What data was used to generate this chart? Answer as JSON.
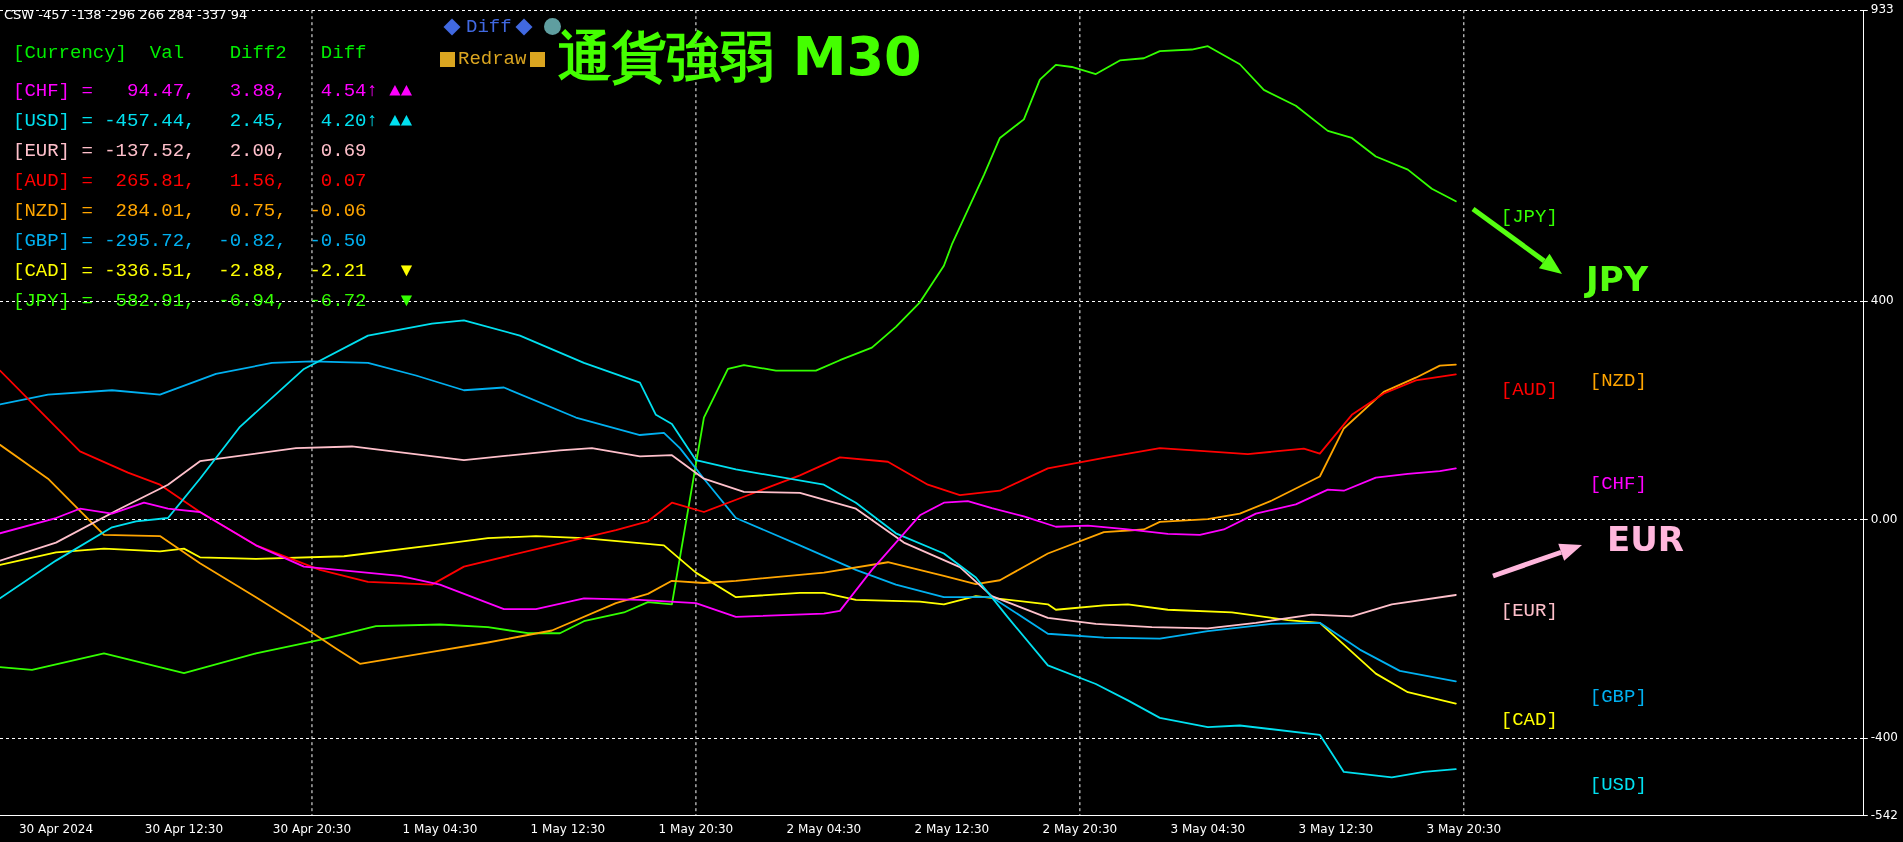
{
  "chart_data": {
    "type": "line",
    "title": "通貨強弱 M30",
    "annotations": [
      "CSW -457 -138 -296 266 284 -337 94",
      "[Currency]  Val    Diff2   Diff",
      "[CHF] =   94.47,   3.88,   4.54↑ ▲▲",
      "[USD] = -457.44,   2.45,   4.20↑ ▲▲",
      "[EUR] = -137.52,   2.00,   0.69",
      "[AUD] =  265.81,   1.56,   0.07",
      "[NZD] =  284.01,   0.75,  -0.06",
      "[GBP] = -295.72,  -0.82,  -0.50",
      "[CAD] = -336.51,  -2.88,  -2.21   ▼",
      "[JPY] =  582.91,  -6.94,  -6.72   ▼",
      "Diff",
      "Redraw",
      "JPY",
      "EUR"
    ],
    "xlim": [
      "2024-04-30T01:00",
      "2024-05-04T21:30"
    ],
    "xticks": [
      {
        "value": "2024-04-30T04:30",
        "label": "30 Apr 2024"
      },
      {
        "value": "2024-04-30T12:30",
        "label": "30 Apr 12:30"
      },
      {
        "value": "2024-04-30T20:30",
        "label": "30 Apr 20:30"
      },
      {
        "value": "2024-05-01T04:30",
        "label": "1 May 04:30"
      },
      {
        "value": "2024-05-01T12:30",
        "label": "1 May 12:30"
      },
      {
        "value": "2024-05-01T20:30",
        "label": "1 May 20:30"
      },
      {
        "value": "2024-05-02T04:30",
        "label": "2 May 04:30"
      },
      {
        "value": "2024-05-02T12:30",
        "label": "2 May 12:30"
      },
      {
        "value": "2024-05-02T20:30",
        "label": "2 May 20:30"
      },
      {
        "value": "2024-05-03T04:30",
        "label": "3 May 04:30"
      },
      {
        "value": "2024-05-03T12:30",
        "label": "3 May 12:30"
      },
      {
        "value": "2024-05-03T20:30",
        "label": "3 May 20:30"
      }
    ],
    "ylim": [
      -542,
      933
    ],
    "yticks": [
      933,
      400,
      {
        "value": 0,
        "label": "0.00"
      },
      -400,
      -542
    ],
    "grid": "y",
    "legend": false,
    "marker": "none",
    "line_style": "solid",
    "ref_lines": [
      {
        "axis": "x",
        "value": "2024-04-30T20:30",
        "color": "#ffffff",
        "line_style": "dotted"
      },
      {
        "axis": "x",
        "value": "2024-05-01T20:30",
        "color": "#ffffff",
        "line_style": "dotted"
      },
      {
        "axis": "x",
        "value": "2024-05-02T20:30",
        "color": "#ffffff",
        "line_style": "dotted"
      },
      {
        "axis": "x",
        "value": "2024-05-03T20:30",
        "color": "#ffffff",
        "line_style": "dotted"
      }
    ],
    "series": [
      {
        "name": "[CHF]",
        "color": "#ff00ff",
        "x": [
          "2024-04-30T01:00",
          "2024-04-30T04:30",
          "2024-04-30T06:00",
          "2024-04-30T08:00",
          "2024-04-30T10:00",
          "2024-04-30T11:30",
          "2024-04-30T13:30",
          "2024-04-30T17:00",
          "2024-04-30T20:00",
          "2024-05-01T02:00",
          "2024-05-01T04:30",
          "2024-05-01T08:30",
          "2024-05-01T10:30",
          "2024-05-01T13:30",
          "2024-05-01T17:00",
          "2024-05-01T20:30",
          "2024-05-01T23:00",
          "2024-05-02T04:30",
          "2024-05-02T05:30",
          "2024-05-02T07:30",
          "2024-05-02T10:30",
          "2024-05-02T12:00",
          "2024-05-02T13:30",
          "2024-05-02T15:00",
          "2024-05-02T17:00",
          "2024-05-02T19:00",
          "2024-05-02T21:00",
          "2024-05-02T23:30",
          "2024-05-03T02:00",
          "2024-05-03T04:00",
          "2024-05-03T05:30",
          "2024-05-03T07:30",
          "2024-05-03T10:00",
          "2024-05-03T12:00",
          "2024-05-03T13:00",
          "2024-05-03T15:00",
          "2024-05-03T17:00",
          "2024-05-03T19:00",
          "2024-05-03T20:00"
        ],
        "values": [
          -25,
          3,
          20,
          11,
          31,
          20,
          14,
          -47,
          -86,
          -103,
          -119,
          -164,
          -164,
          -144,
          -147,
          -153,
          -178,
          -172,
          -167,
          -92,
          8,
          31,
          34,
          21,
          6,
          -13,
          -11,
          -18,
          -26,
          -28,
          -18,
          11,
          28,
          55,
          53,
          77,
          84,
          89,
          94
        ]
      },
      {
        "name": "[USD]",
        "color": "#00e0f0",
        "x": [
          "2024-04-30T01:00",
          "2024-04-30T04:30",
          "2024-04-30T08:00",
          "2024-04-30T09:30",
          "2024-04-30T11:30",
          "2024-04-30T13:30",
          "2024-04-30T16:00",
          "2024-04-30T20:00",
          "2024-05-01T00:00",
          "2024-05-01T04:00",
          "2024-05-01T06:00",
          "2024-05-01T09:30",
          "2024-05-01T13:30",
          "2024-05-01T17:00",
          "2024-05-01T18:00",
          "2024-05-01T19:00",
          "2024-05-01T20:30",
          "2024-05-01T23:00",
          "2024-05-02T04:30",
          "2024-05-02T06:30",
          "2024-05-02T09:00",
          "2024-05-02T12:00",
          "2024-05-02T14:00",
          "2024-05-02T16:00",
          "2024-05-02T18:30",
          "2024-05-02T21:30",
          "2024-05-02T23:30",
          "2024-05-03T01:30",
          "2024-05-03T04:30",
          "2024-05-03T06:30",
          "2024-05-03T11:30",
          "2024-05-03T13:00",
          "2024-05-03T16:00",
          "2024-05-03T18:00",
          "2024-05-03T20:00"
        ],
        "values": [
          -144,
          -75,
          -14,
          -3,
          3,
          75,
          170,
          276,
          337,
          359,
          365,
          337,
          287,
          251,
          192,
          175,
          109,
          92,
          64,
          31,
          -25,
          -62,
          -106,
          -179,
          -267,
          -301,
          -331,
          -363,
          -380,
          -377,
          -394,
          -462,
          -472,
          -462,
          -457
        ]
      },
      {
        "name": "[EUR]",
        "color": "#ffc0cb",
        "x": [
          "2024-04-30T01:00",
          "2024-04-30T04:30",
          "2024-04-30T08:30",
          "2024-04-30T11:30",
          "2024-04-30T13:30",
          "2024-04-30T19:30",
          "2024-04-30T23:00",
          "2024-05-01T06:00",
          "2024-05-01T12:00",
          "2024-05-01T14:00",
          "2024-05-01T17:00",
          "2024-05-01T19:00",
          "2024-05-01T21:00",
          "2024-05-01T23:30",
          "2024-05-02T03:00",
          "2024-05-02T06:30",
          "2024-05-02T09:30",
          "2024-05-02T13:00",
          "2024-05-02T15:00",
          "2024-05-02T18:30",
          "2024-05-02T21:30",
          "2024-05-03T01:00",
          "2024-05-03T04:30",
          "2024-05-03T07:30",
          "2024-05-03T11:00",
          "2024-05-03T13:30",
          "2024-05-03T16:00",
          "2024-05-03T20:00"
        ],
        "values": [
          -75,
          -42,
          20,
          64,
          107,
          131,
          134,
          109,
          127,
          131,
          116,
          118,
          75,
          51,
          49,
          20,
          -42,
          -87,
          -140,
          -180,
          -191,
          -197,
          -199,
          -189,
          -174,
          -177,
          -155,
          -138
        ]
      },
      {
        "name": "[AUD]",
        "color": "#ff0000",
        "x": [
          "2024-04-30T01:00",
          "2024-04-30T06:00",
          "2024-04-30T09:00",
          "2024-04-30T11:00",
          "2024-04-30T13:30",
          "2024-04-30T17:00",
          "2024-04-30T21:00",
          "2024-05-01T00:00",
          "2024-05-01T04:00",
          "2024-05-01T06:00",
          "2024-05-01T11:30",
          "2024-05-01T15:30",
          "2024-05-01T17:30",
          "2024-05-01T19:00",
          "2024-05-01T21:00",
          "2024-05-01T23:30",
          "2024-05-02T03:00",
          "2024-05-02T05:30",
          "2024-05-02T08:30",
          "2024-05-02T11:00",
          "2024-05-02T13:00",
          "2024-05-02T15:30",
          "2024-05-02T18:30",
          "2024-05-02T22:00",
          "2024-05-03T01:30",
          "2024-05-03T04:30",
          "2024-05-03T07:00",
          "2024-05-03T10:30",
          "2024-05-03T11:30",
          "2024-05-03T13:30",
          "2024-05-03T15:30",
          "2024-05-03T17:30",
          "2024-05-03T20:00"
        ],
        "values": [
          273,
          125,
          86,
          64,
          14,
          -47,
          -92,
          -114,
          -119,
          -86,
          -47,
          -19,
          -3,
          31,
          14,
          42,
          81,
          114,
          106,
          64,
          45,
          53,
          94,
          113,
          131,
          125,
          120,
          130,
          121,
          192,
          231,
          255,
          266
        ]
      },
      {
        "name": "[NZD]",
        "color": "#ffa500",
        "x": [
          "2024-04-30T01:00",
          "2024-04-30T04:00",
          "2024-04-30T07:30",
          "2024-04-30T11:00",
          "2024-04-30T13:30",
          "2024-04-30T17:00",
          "2024-04-30T20:00",
          "2024-04-30T22:00",
          "2024-04-30T23:30",
          "2024-05-01T04:00",
          "2024-05-01T07:30",
          "2024-05-01T11:30",
          "2024-05-01T15:30",
          "2024-05-01T17:30",
          "2024-05-01T19:00",
          "2024-05-01T21:00",
          "2024-05-01T23:00",
          "2024-05-02T04:30",
          "2024-05-02T08:30",
          "2024-05-02T12:00",
          "2024-05-02T14:00",
          "2024-05-02T15:30",
          "2024-05-02T18:30",
          "2024-05-02T22:00",
          "2024-05-03T00:30",
          "2024-05-03T01:30",
          "2024-05-03T04:30",
          "2024-05-03T06:30",
          "2024-05-03T08:30",
          "2024-05-03T11:30",
          "2024-05-03T13:00",
          "2024-05-03T15:30",
          "2024-05-03T17:30",
          "2024-05-03T19:00",
          "2024-05-03T20:00"
        ],
        "values": [
          137,
          75,
          -28,
          -30,
          -80,
          -142,
          -197,
          -236,
          -264,
          -242,
          -225,
          -203,
          -153,
          -136,
          -112,
          -116,
          -112,
          -97,
          -78,
          -103,
          -118,
          -111,
          -62,
          -23,
          -18,
          -4,
          1,
          11,
          35,
          79,
          167,
          234,
          260,
          282,
          284
        ]
      },
      {
        "name": "[GBP]",
        "color": "#00b0f0",
        "x": [
          "2024-04-30T01:00",
          "2024-04-30T04:00",
          "2024-04-30T08:00",
          "2024-04-30T11:00",
          "2024-04-30T14:30",
          "2024-04-30T18:00",
          "2024-04-30T20:30",
          "2024-05-01T00:00",
          "2024-05-01T03:00",
          "2024-05-01T06:00",
          "2024-05-01T08:30",
          "2024-05-01T13:00",
          "2024-05-01T17:00",
          "2024-05-01T18:30",
          "2024-05-01T19:30",
          "2024-05-01T21:00",
          "2024-05-01T23:00",
          "2024-05-02T03:00",
          "2024-05-02T06:30",
          "2024-05-02T09:00",
          "2024-05-02T12:00",
          "2024-05-02T15:00",
          "2024-05-02T18:30",
          "2024-05-02T22:00",
          "2024-05-03T01:30",
          "2024-05-03T04:30",
          "2024-05-03T08:30",
          "2024-05-03T11:30",
          "2024-05-03T14:00",
          "2024-05-03T16:30",
          "2024-05-03T20:00"
        ],
        "values": [
          211,
          229,
          237,
          229,
          267,
          287,
          290,
          287,
          264,
          237,
          242,
          187,
          155,
          159,
          131,
          75,
          3,
          -47,
          -92,
          -119,
          -142,
          -142,
          -209,
          -216,
          -218,
          -204,
          -191,
          -189,
          -238,
          -277,
          -296
        ]
      },
      {
        "name": "[CAD]",
        "color": "#ffff00",
        "x": [
          "2024-04-30T01:00",
          "2024-04-30T04:30",
          "2024-04-30T07:30",
          "2024-04-30T11:00",
          "2024-04-30T12:30",
          "2024-04-30T13:30",
          "2024-04-30T17:00",
          "2024-04-30T22:30",
          "2024-05-01T04:00",
          "2024-05-01T07:30",
          "2024-05-01T10:30",
          "2024-05-01T13:30",
          "2024-05-01T18:30",
          "2024-05-01T20:30",
          "2024-05-01T23:00",
          "2024-05-02T03:00",
          "2024-05-02T04:30",
          "2024-05-02T06:30",
          "2024-05-02T10:30",
          "2024-05-02T12:00",
          "2024-05-02T14:00",
          "2024-05-02T18:30",
          "2024-05-02T19:00",
          "2024-05-02T22:00",
          "2024-05-02T23:30",
          "2024-05-03T02:00",
          "2024-05-03T06:00",
          "2024-05-03T09:30",
          "2024-05-03T11:30",
          "2024-05-03T15:00",
          "2024-05-03T17:00",
          "2024-05-03T20:00"
        ],
        "values": [
          -83,
          -60,
          -53,
          -58,
          -53,
          -69,
          -72,
          -67,
          -47,
          -34,
          -30,
          -34,
          -47,
          -97,
          -142,
          -134,
          -134,
          -147,
          -150,
          -155,
          -140,
          -155,
          -165,
          -157,
          -155,
          -165,
          -170,
          -184,
          -189,
          -282,
          -316,
          -337
        ]
      },
      {
        "name": "[JPY]",
        "color": "#33ff00",
        "x": [
          "2024-04-30T01:00",
          "2024-04-30T03:00",
          "2024-04-30T07:30",
          "2024-04-30T12:30",
          "2024-04-30T17:00",
          "2024-04-30T21:00",
          "2024-05-01T00:30",
          "2024-05-01T04:30",
          "2024-05-01T07:30",
          "2024-05-01T10:00",
          "2024-05-01T12:00",
          "2024-05-01T13:30",
          "2024-05-01T16:00",
          "2024-05-01T17:30",
          "2024-05-01T19:00",
          "2024-05-01T21:00",
          "2024-05-01T22:30",
          "2024-05-01T23:30",
          "2024-05-02T01:30",
          "2024-05-02T04:00",
          "2024-05-02T05:30",
          "2024-05-02T07:30",
          "2024-05-02T09:00",
          "2024-05-02T10:30",
          "2024-05-02T12:00",
          "2024-05-02T12:30",
          "2024-05-02T14:30",
          "2024-05-02T15:30",
          "2024-05-02T17:00",
          "2024-05-02T18:00",
          "2024-05-02T19:00",
          "2024-05-02T20:00",
          "2024-05-02T21:30",
          "2024-05-02T23:00",
          "2024-05-03T00:30",
          "2024-05-03T01:30",
          "2024-05-03T03:30",
          "2024-05-03T04:30",
          "2024-05-03T06:30",
          "2024-05-03T08:00",
          "2024-05-03T10:00",
          "2024-05-03T12:00",
          "2024-05-03T13:30",
          "2024-05-03T15:00",
          "2024-05-03T17:00",
          "2024-05-03T18:30",
          "2024-05-03T20:00"
        ],
        "values": [
          -270,
          -275,
          -245,
          -281,
          -245,
          -220,
          -195,
          -192,
          -197,
          -208,
          -208,
          -186,
          -170,
          -151,
          -155,
          187,
          276,
          283,
          273,
          273,
          292,
          315,
          353,
          398,
          465,
          504,
          631,
          699,
          733,
          806,
          833,
          829,
          816,
          841,
          845,
          858,
          861,
          867,
          834,
          787,
          758,
          712,
          699,
          665,
          641,
          606,
          583
        ]
      }
    ]
  }
}
